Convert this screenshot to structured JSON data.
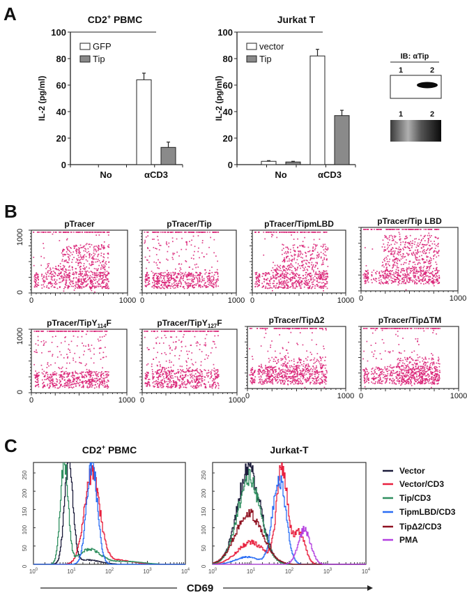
{
  "panel_labels": [
    "A",
    "B",
    "C"
  ],
  "blot": {
    "header": "IB: αTip",
    "lanes_top": [
      "1",
      "2"
    ],
    "lanes_bottom": [
      "1",
      "2"
    ]
  },
  "panel_c": {
    "xlabel": "CD69"
  },
  "chart_data": [
    {
      "type": "bar",
      "title": {
        "main": "CD2",
        "sup": "+",
        "rest": " PBMC"
      },
      "ylabel": "IL-2 (pg/ml)",
      "categories": [
        "No",
        "αCD3"
      ],
      "ylim": [
        0,
        100
      ],
      "yticks": [
        0,
        20,
        40,
        60,
        80,
        100
      ],
      "legend": "top-left",
      "series": [
        {
          "name": "GFP",
          "color": "#ffffff",
          "values": [
            0,
            64
          ],
          "errors": [
            0,
            5
          ]
        },
        {
          "name": "Tip",
          "color": "#8a8a8a",
          "values": [
            0,
            13
          ],
          "errors": [
            0,
            4
          ]
        }
      ]
    },
    {
      "type": "bar",
      "title": {
        "main": "Jurkat T"
      },
      "ylabel": "IL-2 (pg/ml)",
      "categories": [
        "No",
        "αCD3"
      ],
      "ylim": [
        0,
        100
      ],
      "yticks": [
        0,
        20,
        40,
        60,
        80,
        100
      ],
      "legend": "top-left",
      "series": [
        {
          "name": "vector",
          "color": "#ffffff",
          "values": [
            2.5,
            82
          ],
          "errors": [
            0.5,
            5
          ]
        },
        {
          "name": "Tip",
          "color": "#8a8a8a",
          "values": [
            2,
            37
          ],
          "errors": [
            0.5,
            4
          ]
        }
      ]
    },
    {
      "type": "scatter",
      "title": {
        "pre": "pTracer"
      },
      "xlim": [
        0,
        1000
      ],
      "ylim": [
        0,
        1000
      ],
      "xticks": [
        0,
        1000
      ],
      "yticks": [
        0,
        1000
      ],
      "color": "#d81b72",
      "populations": [
        {
          "x": [
            10,
            60
          ],
          "y": [
            80,
            330
          ],
          "n": 40
        },
        {
          "x": [
            85,
            800
          ],
          "y": [
            60,
            330
          ],
          "n": 260
        },
        {
          "x": [
            300,
            800
          ],
          "y": [
            60,
            800
          ],
          "n": 380
        },
        {
          "x": [
            150,
            320
          ],
          "y": [
            300,
            480
          ],
          "n": 40
        },
        {
          "x": [
            0,
            800
          ],
          "y": [
            0,
            1000
          ],
          "n": 40
        },
        {
          "x": [
            0,
            800
          ],
          "y": [
            1000,
            1000
          ],
          "n": 90
        }
      ]
    },
    {
      "type": "scatter",
      "title": {
        "pre": "pTracer/Tip"
      },
      "xlim": [
        0,
        1000
      ],
      "ylim": [
        0,
        1000
      ],
      "xticks": [
        0,
        1000
      ],
      "color": "#d81b72",
      "populations": [
        {
          "x": [
            10,
            60
          ],
          "y": [
            80,
            330
          ],
          "n": 40
        },
        {
          "x": [
            85,
            800
          ],
          "y": [
            60,
            330
          ],
          "n": 420
        },
        {
          "x": [
            0,
            800
          ],
          "y": [
            330,
            950
          ],
          "n": 110
        },
        {
          "x": [
            0,
            800
          ],
          "y": [
            1000,
            1000
          ],
          "n": 90
        }
      ]
    },
    {
      "type": "scatter",
      "title": {
        "pre": "pTracer/TipmLBD"
      },
      "xlim": [
        0,
        1000
      ],
      "ylim": [
        0,
        1000
      ],
      "xticks": [
        0,
        1000
      ],
      "color": "#d81b72",
      "populations": [
        {
          "x": [
            10,
            60
          ],
          "y": [
            80,
            330
          ],
          "n": 40
        },
        {
          "x": [
            85,
            800
          ],
          "y": [
            60,
            330
          ],
          "n": 260
        },
        {
          "x": [
            300,
            800
          ],
          "y": [
            60,
            800
          ],
          "n": 330
        },
        {
          "x": [
            180,
            330
          ],
          "y": [
            250,
            450
          ],
          "n": 40
        },
        {
          "x": [
            0,
            800
          ],
          "y": [
            0,
            1000
          ],
          "n": 40
        },
        {
          "x": [
            0,
            800
          ],
          "y": [
            1000,
            1000
          ],
          "n": 90
        }
      ]
    },
    {
      "type": "scatter",
      "title": {
        "pre": "pTracer/Tip LBD"
      },
      "xlim": [
        0,
        1000
      ],
      "ylim": [
        0,
        1000
      ],
      "xticks": [
        0,
        1000
      ],
      "color": "#d81b72",
      "populations": [
        {
          "x": [
            10,
            60
          ],
          "y": [
            100,
            330
          ],
          "n": 40
        },
        {
          "x": [
            85,
            800
          ],
          "y": [
            100,
            330
          ],
          "n": 200
        },
        {
          "x": [
            200,
            800
          ],
          "y": [
            100,
            900
          ],
          "n": 520
        },
        {
          "x": [
            0,
            800
          ],
          "y": [
            0,
            1000
          ],
          "n": 30
        },
        {
          "x": [
            0,
            800
          ],
          "y": [
            1000,
            1000
          ],
          "n": 90
        }
      ]
    },
    {
      "type": "scatter",
      "title": {
        "pre": "pTracer/TipY",
        "sub": "114",
        "post": "F"
      },
      "xlim": [
        0,
        1000
      ],
      "ylim": [
        0,
        1000
      ],
      "xticks": [
        0,
        1000
      ],
      "yticks": [
        0,
        1000
      ],
      "color": "#d81b72",
      "populations": [
        {
          "x": [
            10,
            60
          ],
          "y": [
            80,
            330
          ],
          "n": 40
        },
        {
          "x": [
            85,
            800
          ],
          "y": [
            60,
            340
          ],
          "n": 420
        },
        {
          "x": [
            0,
            800
          ],
          "y": [
            340,
            950
          ],
          "n": 110
        },
        {
          "x": [
            0,
            800
          ],
          "y": [
            1000,
            1000
          ],
          "n": 90
        }
      ]
    },
    {
      "type": "scatter",
      "title": {
        "pre": "pTracer/TipY",
        "sub": "127",
        "post": "F"
      },
      "xlim": [
        0,
        1000
      ],
      "ylim": [
        0,
        1000
      ],
      "xticks": [
        0,
        1000
      ],
      "color": "#d81b72",
      "populations": [
        {
          "x": [
            10,
            60
          ],
          "y": [
            80,
            330
          ],
          "n": 40
        },
        {
          "x": [
            85,
            800
          ],
          "y": [
            60,
            370
          ],
          "n": 440
        },
        {
          "x": [
            0,
            800
          ],
          "y": [
            370,
            950
          ],
          "n": 120
        },
        {
          "x": [
            0,
            800
          ],
          "y": [
            1000,
            1000
          ],
          "n": 90
        }
      ]
    },
    {
      "type": "scatter",
      "title": {
        "pre": "pTracer/TipΔ2"
      },
      "xlim": [
        0,
        1000
      ],
      "ylim": [
        0,
        1000
      ],
      "xticks": [
        0,
        1000
      ],
      "color": "#d81b72",
      "populations": [
        {
          "x": [
            10,
            60
          ],
          "y": [
            80,
            330
          ],
          "n": 40
        },
        {
          "x": [
            85,
            800
          ],
          "y": [
            60,
            380
          ],
          "n": 380
        },
        {
          "x": [
            200,
            800
          ],
          "y": [
            60,
            520
          ],
          "n": 200
        },
        {
          "x": [
            0,
            800
          ],
          "y": [
            0,
            1000
          ],
          "n": 90
        },
        {
          "x": [
            0,
            800
          ],
          "y": [
            1000,
            1000
          ],
          "n": 90
        }
      ]
    },
    {
      "type": "scatter",
      "title": {
        "pre": "pTracer/TipΔTM"
      },
      "xlim": [
        0,
        1000
      ],
      "ylim": [
        0,
        1000
      ],
      "xticks": [
        0,
        1000
      ],
      "color": "#d81b72",
      "populations": [
        {
          "x": [
            10,
            60
          ],
          "y": [
            80,
            330
          ],
          "n": 40
        },
        {
          "x": [
            85,
            800
          ],
          "y": [
            60,
            360
          ],
          "n": 360
        },
        {
          "x": [
            350,
            800
          ],
          "y": [
            60,
            520
          ],
          "n": 240
        },
        {
          "x": [
            0,
            800
          ],
          "y": [
            0,
            1000
          ],
          "n": 90
        },
        {
          "x": [
            0,
            800
          ],
          "y": [
            1000,
            1000
          ],
          "n": 90
        }
      ]
    },
    {
      "type": "line",
      "subtype": "histogram",
      "title": {
        "main": "CD2",
        "sup": "+",
        "rest": " PBMC"
      },
      "xscale": "log",
      "xlim": [
        1,
        10000
      ],
      "x_ticks": {
        "base": "10",
        "exponents": [
          0,
          1,
          2,
          3,
          4
        ]
      },
      "ylim": [
        0,
        285
      ],
      "yticks": [
        0,
        50,
        100,
        150,
        200,
        250
      ],
      "series": [
        {
          "name": "Vector",
          "color": "#1b1b3a",
          "peaks": [
            {
              "center": 8.5,
              "height": 280,
              "sd_log": 0.11
            },
            {
              "center": 25,
              "height": 12,
              "sd_log": 0.35
            }
          ]
        },
        {
          "name": "Vector/CD3",
          "color": "#e8203e",
          "peaks": [
            {
              "center": 35,
              "height": 245,
              "sd_log": 0.2
            },
            {
              "center": 150,
              "height": 12,
              "sd_log": 0.4
            }
          ]
        },
        {
          "name": "Tip/CD3",
          "color": "#2f8f5f",
          "peaks": [
            {
              "center": 6.5,
              "height": 280,
              "sd_log": 0.1
            },
            {
              "center": 30,
              "height": 40,
              "sd_log": 0.3
            },
            {
              "center": 300,
              "height": 8,
              "sd_log": 0.4
            }
          ]
        },
        {
          "name": "TipmLBD/CD3",
          "color": "#2a6df4",
          "peaks": [
            {
              "center": 35,
              "height": 275,
              "sd_log": 0.14
            }
          ]
        }
      ]
    },
    {
      "type": "line",
      "subtype": "histogram",
      "title": {
        "main": "Jurkat-T"
      },
      "xscale": "log",
      "xlim": [
        1,
        10000
      ],
      "x_ticks": {
        "base": "10",
        "exponents": [
          0,
          1,
          2,
          3,
          4
        ]
      },
      "ylim": [
        0,
        285
      ],
      "yticks": [
        0,
        50,
        100,
        150,
        200,
        250
      ],
      "series": [
        {
          "name": "Vector",
          "color": "#1b1b3a",
          "peaks": [
            {
              "center": 9,
              "height": 262,
              "sd_log": 0.3
            }
          ]
        },
        {
          "name": "Vector/CD3",
          "color": "#e8203e",
          "peaks": [
            {
              "center": 10,
              "height": 60,
              "sd_log": 0.35
            },
            {
              "center": 65,
              "height": 262,
              "sd_log": 0.14
            },
            {
              "center": 180,
              "height": 90,
              "sd_log": 0.15
            }
          ]
        },
        {
          "name": "Tip/CD3",
          "color": "#2f8f5f",
          "peaks": [
            {
              "center": 9,
              "height": 235,
              "sd_log": 0.3
            }
          ]
        },
        {
          "name": "TipmLBD/CD3",
          "color": "#2a6df4",
          "peaks": [
            {
              "center": 55,
              "height": 235,
              "sd_log": 0.17
            },
            {
              "center": 8,
              "height": 20,
              "sd_log": 0.3
            }
          ]
        },
        {
          "name": "TipΔ2/CD3",
          "color": "#8e1020",
          "peaks": [
            {
              "center": 9,
              "height": 140,
              "sd_log": 0.35
            }
          ]
        },
        {
          "name": "PMA",
          "color": "#b43fe0",
          "peaks": [
            {
              "center": 250,
              "height": 95,
              "sd_log": 0.16
            }
          ]
        }
      ]
    }
  ]
}
